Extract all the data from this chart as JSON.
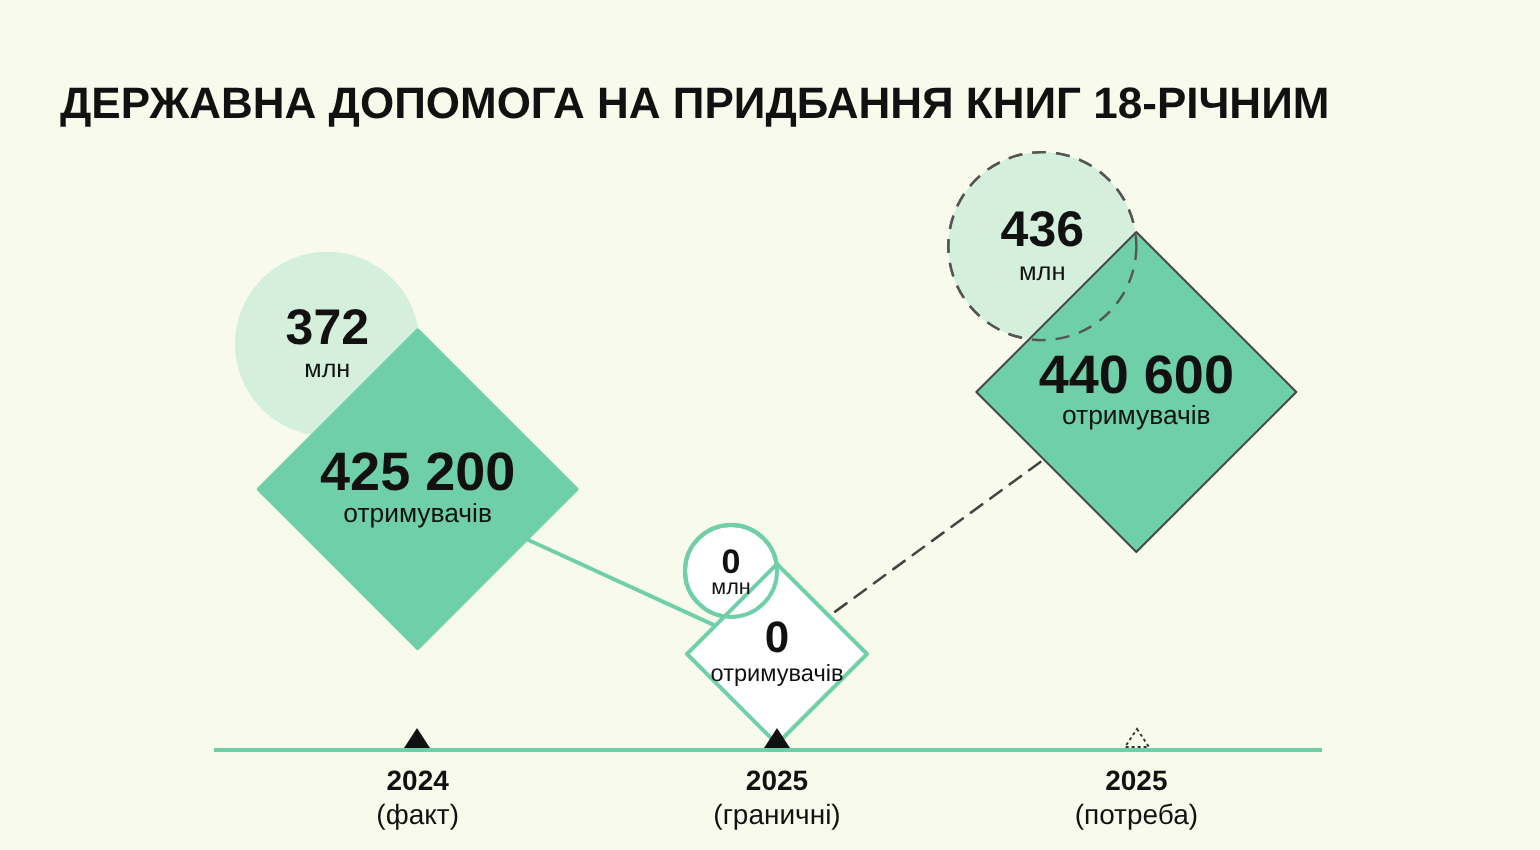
{
  "chart_data": {
    "type": "other",
    "title": "ДЕРЖАВНА ДОПОМОГА НА ПРИДБАННЯ КНИГ 18-РІЧНИМ",
    "categories": [
      "2024 (факт)",
      "2025 (граничні)",
      "2025 (потреба)"
    ],
    "series": [
      {
        "marker": "circle",
        "color": "#d4f0dc",
        "colors": [
          "#d4f0dc",
          null,
          null
        ],
        "line_style": "solid",
        "values": [
          372,
          null,
          null
        ],
        "value_labels": [
          "372 млн",
          null,
          null
        ]
      },
      {
        "marker": "circle",
        "color": "#6fcfa8",
        "colors": [
          null,
          "#ffffff",
          null
        ],
        "line_style": "solid",
        "values": [
          null,
          0,
          null
        ],
        "value_labels": [
          null,
          "0 млн",
          null
        ]
      },
      {
        "marker": "circle",
        "color": "#555555",
        "colors": [
          null,
          null,
          "#d4f0dc"
        ],
        "line_style": "dashed",
        "values": [
          null,
          null,
          436
        ],
        "value_labels": [
          null,
          null,
          "436 млн"
        ]
      },
      {
        "marker": "diamond",
        "color": "#6fcfa8",
        "colors": [
          "#6fcfa8",
          null,
          null
        ],
        "line_style": "solid",
        "values": [
          425200,
          null,
          null
        ],
        "value_labels": [
          "425 200 отримувачів",
          null,
          null
        ]
      },
      {
        "marker": "diamond",
        "color": "#6fcfa8",
        "colors": [
          null,
          "#ffffff",
          null
        ],
        "line_style": "solid",
        "values": [
          null,
          0,
          null
        ],
        "value_labels": [
          null,
          "0 отримувачів",
          null
        ]
      },
      {
        "marker": "diamond",
        "color": "#444444",
        "colors": [
          null,
          null,
          "#6fcfa8"
        ],
        "line_style": "dashed",
        "values": [
          null,
          null,
          440600
        ],
        "value_labels": [
          null,
          null,
          "440 600 отримувачів"
        ]
      }
    ]
  }
}
